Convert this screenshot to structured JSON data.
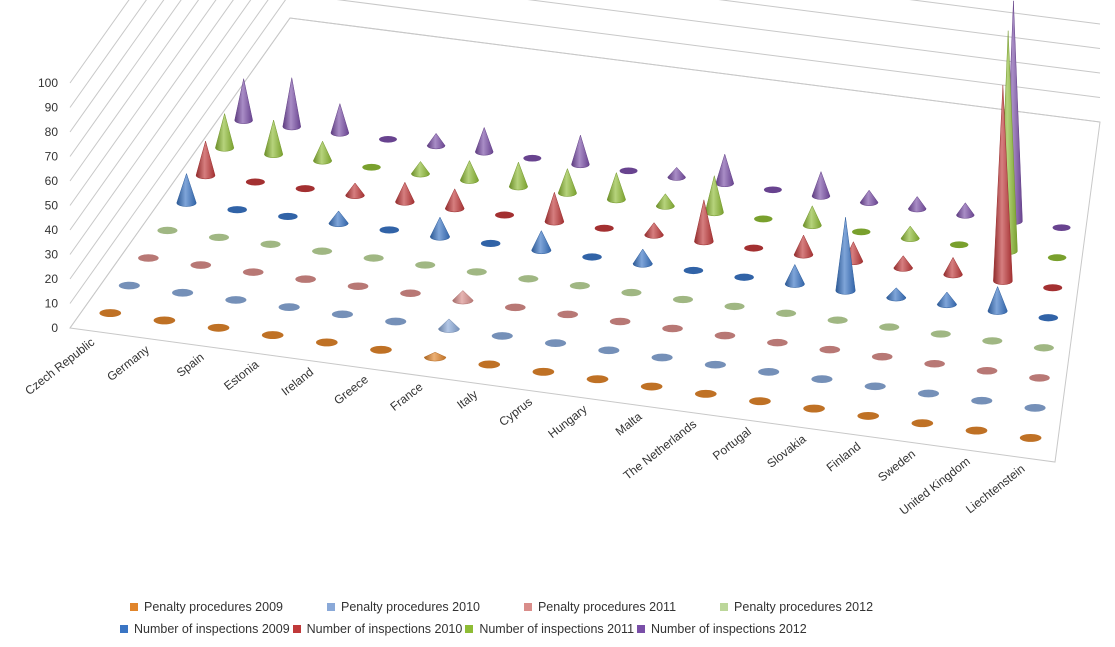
{
  "chart_data": {
    "type": "3d-cone-column",
    "title": "",
    "xlabel": "",
    "ylabel": "",
    "ylim": [
      0,
      100
    ],
    "yticks": [
      0,
      10,
      20,
      30,
      40,
      50,
      60,
      70,
      80,
      90,
      100
    ],
    "grid": true,
    "legend_position": "bottom",
    "categories": [
      "Czech Republic",
      "Germany",
      "Spain",
      "Estonia",
      "Ireland",
      "Greece",
      "France",
      "Italy",
      "Cyprus",
      "Hungary",
      "Malta",
      "The Netherlands",
      "Portugal",
      "Slovakia",
      "Finland",
      "Sweden",
      "United Kingdom",
      "Liechtenstein"
    ],
    "series": [
      {
        "name": "Penalty procedures 2009",
        "color": "#e1852b",
        "values": [
          0,
          0,
          0,
          0,
          0,
          0,
          2,
          0,
          0,
          0,
          0,
          0,
          0,
          0,
          0,
          0,
          0,
          0
        ]
      },
      {
        "name": "Penalty procedures 2010",
        "color": "#8aa9d8",
        "values": [
          0,
          0,
          0,
          0,
          0,
          0,
          4,
          0,
          0,
          0,
          0,
          0,
          0,
          0,
          0,
          0,
          0,
          0
        ]
      },
      {
        "name": "Penalty procedures 2011",
        "color": "#d98d8a",
        "values": [
          0,
          0,
          0,
          0,
          0,
          0,
          4,
          0,
          0,
          0,
          0,
          0,
          0,
          0,
          0,
          0,
          0,
          0
        ]
      },
      {
        "name": "Penalty procedures 2012",
        "color": "#bcd79a",
        "values": [
          0,
          0,
          0,
          0,
          0,
          0,
          0,
          0,
          0,
          0,
          0,
          0,
          0,
          0,
          0,
          0,
          0,
          0
        ]
      },
      {
        "name": "Number of inspections 2009",
        "color": "#3a75c4",
        "values": [
          12,
          0,
          0,
          5,
          0,
          8,
          0,
          8,
          0,
          6,
          0,
          0,
          8,
          30,
          4,
          5,
          10,
          0
        ]
      },
      {
        "name": "Number of inspections 2010",
        "color": "#c0393a",
        "values": [
          14,
          0,
          0,
          5,
          8,
          8,
          0,
          12,
          0,
          5,
          17,
          0,
          8,
          8,
          5,
          7,
          80,
          0
        ]
      },
      {
        "name": "Number of inspections 2011",
        "color": "#8ebc35",
        "values": [
          14,
          14,
          8,
          0,
          5,
          8,
          10,
          10,
          11,
          5,
          15,
          0,
          8,
          0,
          5,
          0,
          90,
          0
        ]
      },
      {
        "name": "Number of inspections 2012",
        "color": "#7a4fa8",
        "values": [
          17,
          20,
          12,
          0,
          5,
          10,
          0,
          12,
          0,
          4,
          12,
          0,
          10,
          5,
          5,
          5,
          90,
          0
        ]
      }
    ]
  }
}
